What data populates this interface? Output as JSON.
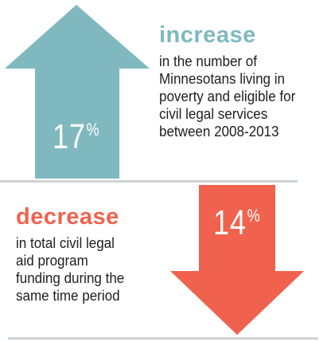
{
  "increase": {
    "value": "17",
    "unit": "%",
    "headline": "increase",
    "description_lines": [
      "in the number of",
      "Minnesotans living in",
      "poverty and eligible for",
      "civil legal services",
      "between 2008-2013"
    ],
    "color": "#7fb9bf"
  },
  "decrease": {
    "value": "14",
    "unit": "%",
    "headline": "decrease",
    "description_lines": [
      "in total civil legal",
      "aid program",
      "funding during the",
      "same time period"
    ],
    "color": "#f0624d"
  },
  "divider_color": "#cfd3d5"
}
